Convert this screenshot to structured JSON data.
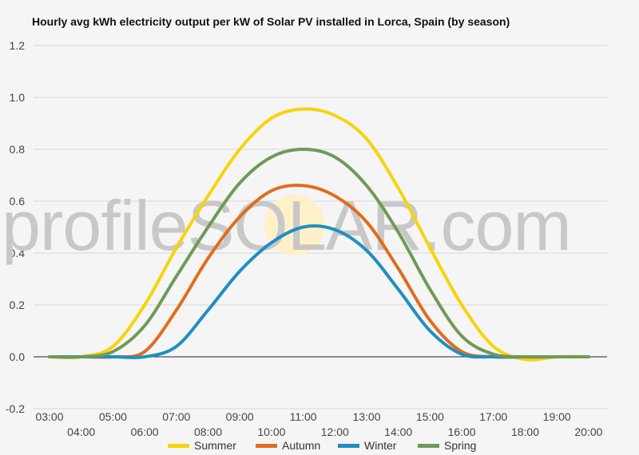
{
  "chart_data": {
    "type": "line",
    "title": "Hourly avg kWh electricity output per kW of Solar PV installed in Lorca, Spain (by season)",
    "xlabel": "",
    "ylabel": "",
    "x": [
      "03:00",
      "04:00",
      "05:00",
      "06:00",
      "07:00",
      "08:00",
      "09:00",
      "10:00",
      "11:00",
      "12:00",
      "13:00",
      "14:00",
      "15:00",
      "16:00",
      "17:00",
      "18:00",
      "19:00",
      "20:00"
    ],
    "ylim": [
      -0.2,
      1.2
    ],
    "yticks": [
      "-0.2",
      "0.0",
      "0.2",
      "0.4",
      "0.6",
      "0.8",
      "1.0",
      "1.2"
    ],
    "grid": true,
    "legend_position": "bottom",
    "series": [
      {
        "name": "Summer",
        "color": "#f7d40c",
        "values": [
          0.0,
          0.0,
          0.04,
          0.2,
          0.42,
          0.62,
          0.8,
          0.92,
          0.955,
          0.93,
          0.84,
          0.65,
          0.42,
          0.2,
          0.04,
          -0.01,
          0.0,
          0.0
        ]
      },
      {
        "name": "Autumn",
        "color": "#e06d1c",
        "values": [
          0.0,
          0.0,
          0.0,
          0.02,
          0.18,
          0.38,
          0.54,
          0.64,
          0.66,
          0.62,
          0.52,
          0.34,
          0.14,
          0.02,
          0.0,
          0.0,
          0.0,
          0.0
        ]
      },
      {
        "name": "Winter",
        "color": "#1f8fc0",
        "values": [
          0.0,
          0.0,
          0.0,
          0.0,
          0.04,
          0.18,
          0.33,
          0.44,
          0.5,
          0.49,
          0.41,
          0.26,
          0.1,
          0.01,
          0.0,
          0.0,
          0.0,
          0.0
        ]
      },
      {
        "name": "Spring",
        "color": "#6f9a57",
        "values": [
          0.0,
          0.0,
          0.02,
          0.12,
          0.31,
          0.5,
          0.67,
          0.77,
          0.8,
          0.77,
          0.66,
          0.48,
          0.26,
          0.08,
          0.01,
          0.0,
          0.0,
          0.0
        ]
      }
    ]
  },
  "watermark": {
    "text": "profileSOLAR.com",
    "color": "#c8c8c8",
    "sun_color": "#fff0c8"
  }
}
